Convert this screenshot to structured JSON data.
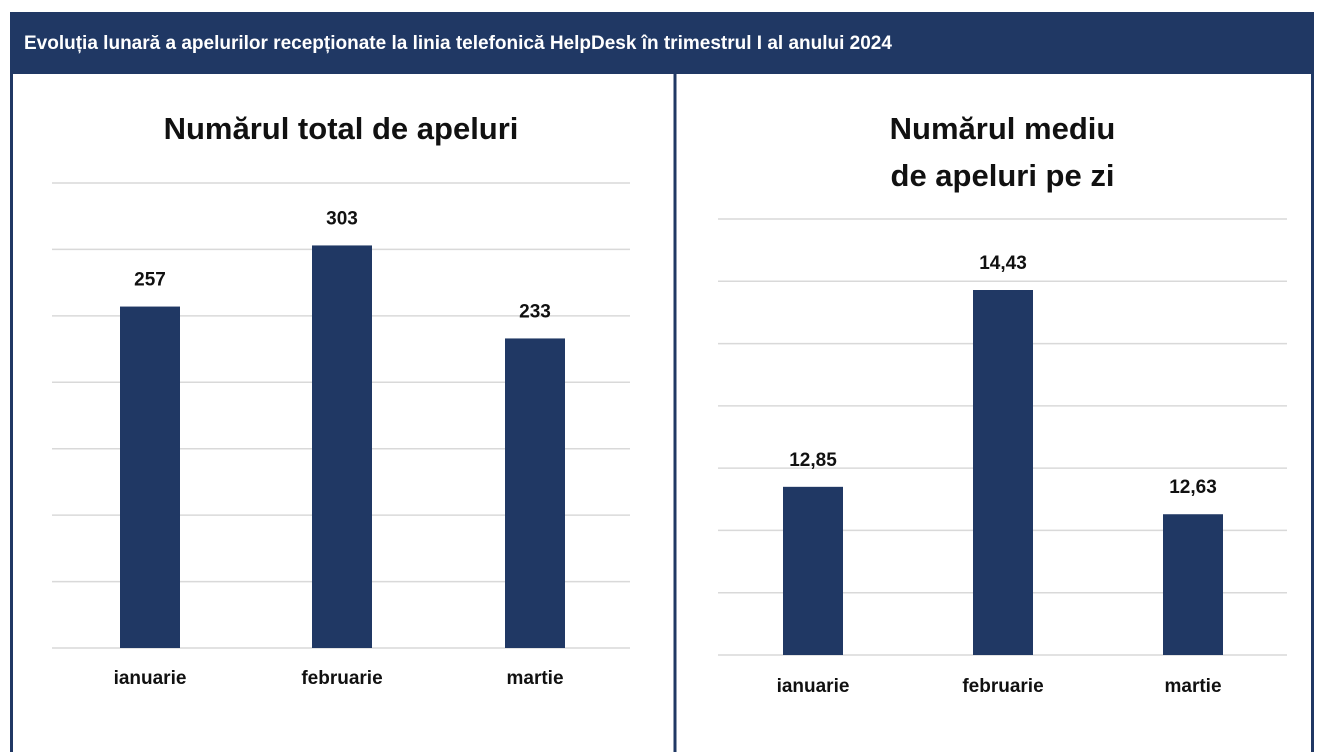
{
  "header": {
    "title": "Evoluția lunară a apelurilor recepționate la linia telefonică HelpDesk în trimestrul I al anului 2024"
  },
  "chart_data": [
    {
      "type": "bar",
      "title": [
        "Numărul total de apeluri"
      ],
      "categories": [
        "ianuarie",
        "februarie",
        "martie"
      ],
      "values": [
        257,
        303,
        233
      ],
      "color": "#203864",
      "ylim": [
        0,
        350
      ],
      "yticks": [
        0,
        50,
        100,
        150,
        200,
        250,
        300,
        350
      ],
      "grid": true
    },
    {
      "type": "bar",
      "title": [
        "Numărul mediu",
        "de apeluri pe zi"
      ],
      "categories": [
        "ianuarie",
        "februarie",
        "martie"
      ],
      "values": [
        12.85,
        14.43,
        12.63
      ],
      "value_labels": [
        "12,85",
        "14,43",
        "12,63"
      ],
      "color": "#203864",
      "ylim": [
        11.5,
        15
      ],
      "yticks": [
        11.5,
        12,
        12.5,
        13,
        13.5,
        14,
        14.5,
        15
      ],
      "grid": true
    }
  ]
}
